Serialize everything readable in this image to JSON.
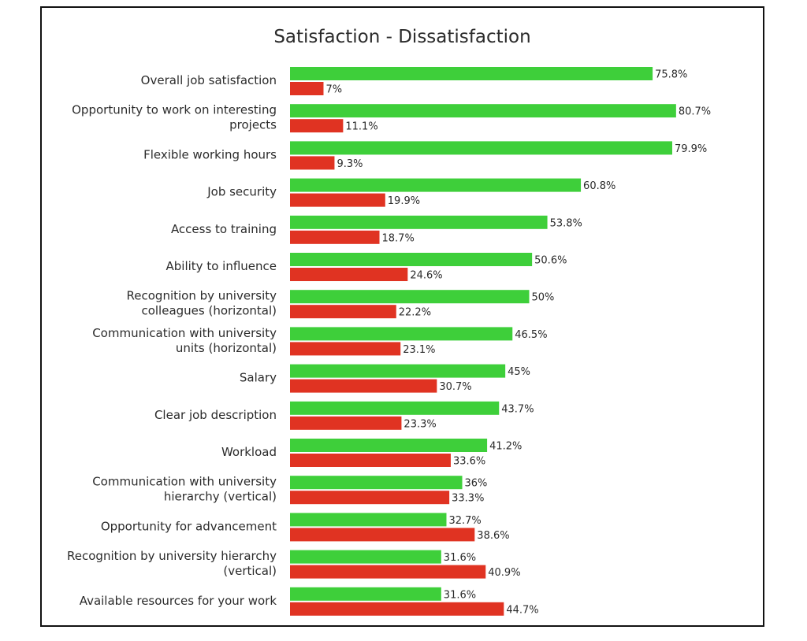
{
  "chart_data": {
    "type": "bar",
    "orientation": "horizontal",
    "title": "Satisfaction - Dissatisfaction",
    "xlabel": "",
    "ylabel": "",
    "xlim": [
      0,
      100
    ],
    "grid": false,
    "legend": "none",
    "categories": [
      [
        "Overall job satisfaction"
      ],
      [
        "Opportunity to work on interesting",
        "projects"
      ],
      [
        "Flexible working hours"
      ],
      [
        "Job security"
      ],
      [
        "Access to training"
      ],
      [
        "Ability to influence"
      ],
      [
        "Recognition by university",
        "colleagues (horizontal)"
      ],
      [
        "Communication with university",
        "units (horizontal)"
      ],
      [
        "Salary"
      ],
      [
        "Clear job description"
      ],
      [
        "Workload"
      ],
      [
        "Communication with university",
        "hierarchy (vertical)"
      ],
      [
        "Opportunity for advancement"
      ],
      [
        "Recognition by university hierarchy",
        "(vertical)"
      ],
      [
        "Available resources for your work"
      ]
    ],
    "series": [
      {
        "color": "#3ecf3a",
        "values": [
          75.8,
          80.7,
          79.9,
          60.8,
          53.8,
          50.6,
          50,
          46.5,
          45,
          43.7,
          41.2,
          36,
          32.7,
          31.6,
          31.6
        ],
        "labels": [
          "75.8%",
          "80.7%",
          "79.9%",
          "60.8%",
          "53.8%",
          "50.6%",
          "50%",
          "46.5%",
          "45%",
          "43.7%",
          "41.2%",
          "36%",
          "32.7%",
          "31.6%",
          "31.6%"
        ]
      },
      {
        "color": "#e03322",
        "values": [
          7,
          11.1,
          9.3,
          19.9,
          18.7,
          24.6,
          22.2,
          23.1,
          30.7,
          23.3,
          33.6,
          33.3,
          38.6,
          40.9,
          44.7
        ],
        "labels": [
          "7%",
          "11.1%",
          "9.3%",
          "19.9%",
          "18.7%",
          "24.6%",
          "22.2%",
          "23.1%",
          "30.7%",
          "23.3%",
          "33.6%",
          "33.3%",
          "38.6%",
          "40.9%",
          "44.7%"
        ]
      }
    ]
  }
}
